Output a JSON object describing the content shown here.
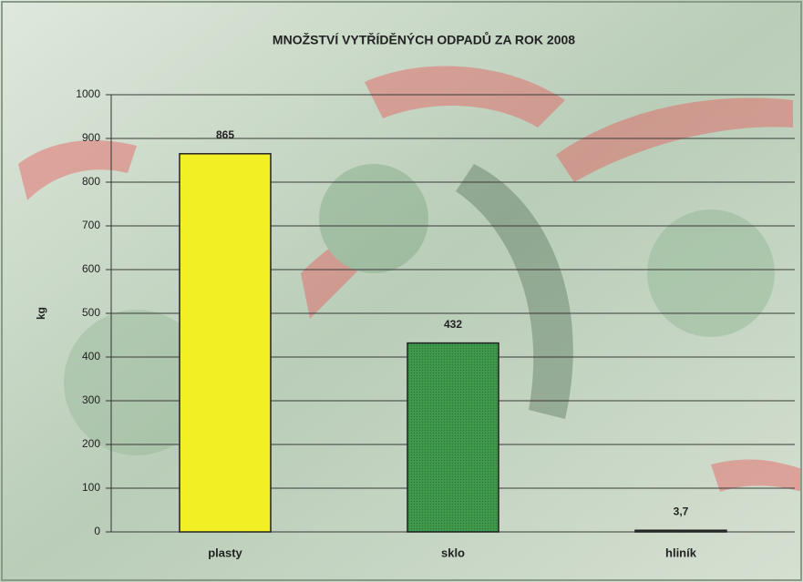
{
  "chart_data": {
    "type": "bar",
    "title": "MNOŽSTVÍ VYTŘÍDĚNÝCH ODPADŮ ZA ROK 2008",
    "y_label": "kg",
    "categories": [
      "plasty",
      "sklo",
      "hliník"
    ],
    "values": [
      865,
      432,
      3.7
    ],
    "value_labels": [
      "865",
      "432",
      "3,7"
    ],
    "colors": [
      "#f2f024",
      "#3f9a4c",
      "#2f4a3a"
    ],
    "ylim": [
      0,
      1000
    ],
    "yticks": [
      0,
      100,
      200,
      300,
      400,
      500,
      600,
      700,
      800,
      900,
      1000
    ],
    "grid": true
  }
}
